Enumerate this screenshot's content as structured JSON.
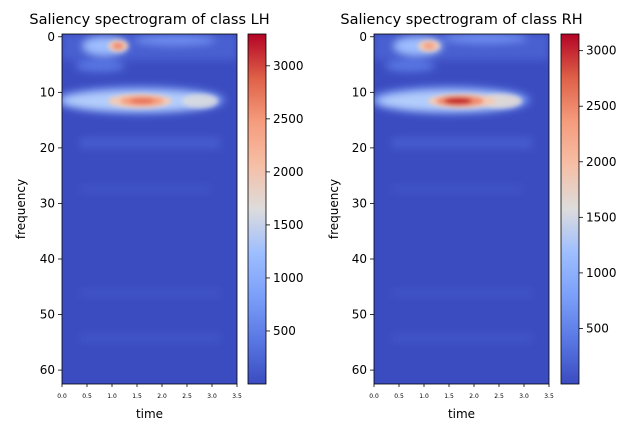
{
  "chart_data": [
    {
      "type": "heatmap",
      "title": "Saliency spectrogram of class LH",
      "xlabel": "time",
      "ylabel": "frequency",
      "xlim": [
        0.0,
        3.5
      ],
      "ylim": [
        62,
        0
      ],
      "xticks": [
        "0.0",
        "0.5",
        "1.0",
        "1.5",
        "2.0",
        "2.5",
        "3.0",
        "3.5"
      ],
      "yticks": [
        "0",
        "10",
        "20",
        "30",
        "40",
        "50",
        "60"
      ],
      "colormap": "coolwarm",
      "colorbar": {
        "min": 0,
        "max": 3300,
        "ticks": [
          "500",
          "1000",
          "1500",
          "2000",
          "2500",
          "3000"
        ]
      },
      "hotspots": [
        {
          "time": 1.1,
          "frequency": 2,
          "value": 2500
        },
        {
          "time": 1.85,
          "frequency": 12,
          "value": 2600
        },
        {
          "time": 2.9,
          "frequency": 12,
          "value": 1400
        },
        {
          "time": 2.2,
          "frequency": 1,
          "value": 900
        }
      ]
    },
    {
      "type": "heatmap",
      "title": "Saliency spectrogram of class RH",
      "xlabel": "time",
      "ylabel": "frequency",
      "xlim": [
        0.0,
        3.5
      ],
      "ylim": [
        62,
        0
      ],
      "xticks": [
        "0.0",
        "0.5",
        "1.0",
        "1.5",
        "2.0",
        "2.5",
        "3.0",
        "3.5"
      ],
      "yticks": [
        "0",
        "10",
        "20",
        "30",
        "40",
        "50",
        "60"
      ],
      "colormap": "coolwarm",
      "colorbar": {
        "min": 0,
        "max": 3150,
        "ticks": [
          "500",
          "1000",
          "1500",
          "2000",
          "2500",
          "3000"
        ]
      },
      "hotspots": [
        {
          "time": 1.1,
          "frequency": 2,
          "value": 2300
        },
        {
          "time": 1.75,
          "frequency": 12,
          "value": 3100
        },
        {
          "time": 2.6,
          "frequency": 12,
          "value": 1700
        },
        {
          "time": 2.3,
          "frequency": 0,
          "value": 900
        }
      ]
    }
  ]
}
